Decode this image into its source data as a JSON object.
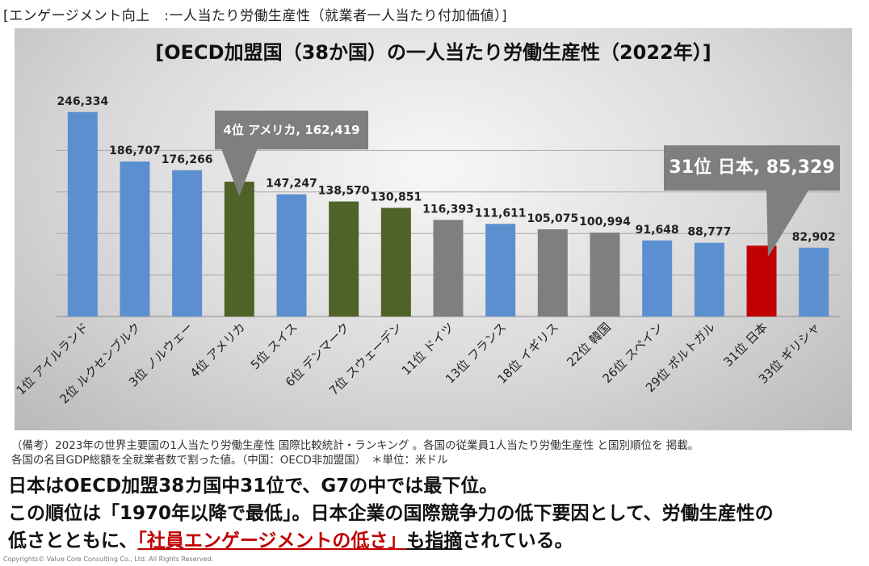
{
  "header": "[エンゲージメント向上　:一人当たり労働生産性（就業者一人当たり付加価値）]",
  "chart_data": {
    "type": "bar",
    "title": "[OECD加盟国（38か国）の一人当たり労働生産性（2022年）]",
    "categories": [
      "1位 アイルランド",
      "2位 ルクセンブルク",
      "3位 ノルウェー",
      "4位 アメリカ",
      "5位 スイス",
      "6位 デンマーク",
      "7位 スウェーデン",
      "11位 ドイツ",
      "13位 フランス",
      "18位 イギリス",
      "22位 韓国",
      "26位 スペイン",
      "29位 ポルトガル",
      "31位 日本",
      "33位 ギリシャ"
    ],
    "values": [
      246334,
      186707,
      176266,
      162419,
      147247,
      138570,
      130851,
      116393,
      111611,
      105075,
      100994,
      91648,
      88777,
      85329,
      82902
    ],
    "value_labels": [
      "246,334",
      "186,707",
      "176,266",
      "",
      "147,247",
      "138,570",
      "130,851",
      "116,393",
      "111,611",
      "105,075",
      "100,994",
      "91,648",
      "88,777",
      "",
      "82,902"
    ],
    "bar_colors": [
      "#5b8fd0",
      "#5b8fd0",
      "#5b8fd0",
      "#4f6228",
      "#5b8fd0",
      "#4f6228",
      "#4f6228",
      "#7f7f7f",
      "#5b8fd0",
      "#7f7f7f",
      "#7f7f7f",
      "#5b8fd0",
      "#5b8fd0",
      "#c00000",
      "#5b8fd0"
    ],
    "ylim": [
      0,
      250000
    ],
    "gridlines": true,
    "callouts": {
      "usa": "4位 アメリカ, 162,419",
      "japan": "31位 日本, 85,329"
    }
  },
  "notes": [
    "（備考）2023年の世界主要国の1人当たり労働生産性 国際比較統計・ランキング 。各国の従業員1人当たり労働生産性 と国別順位を 掲載。",
    "各国の名目GDP総額を全就業者数で割った値。（中国：OECD非加盟国）　＊単位：米ドル"
  ],
  "conclusion": {
    "line1": "日本はOECD加盟38カ国中31位で、G7の中では最下位。",
    "line2": "この順位は「1970年以降で最低」。日本企業の国際競争力の低下要因として、労働生産性の",
    "line3_pre": "低さとともに、",
    "line3_highlight": "「社員エンゲージメントの低さ」",
    "line3_mid": "も指摘",
    "line3_post": "されている。"
  },
  "copyright": "Copyrights© Value Core Consulting Co., Ltd. All Rights Reserved."
}
